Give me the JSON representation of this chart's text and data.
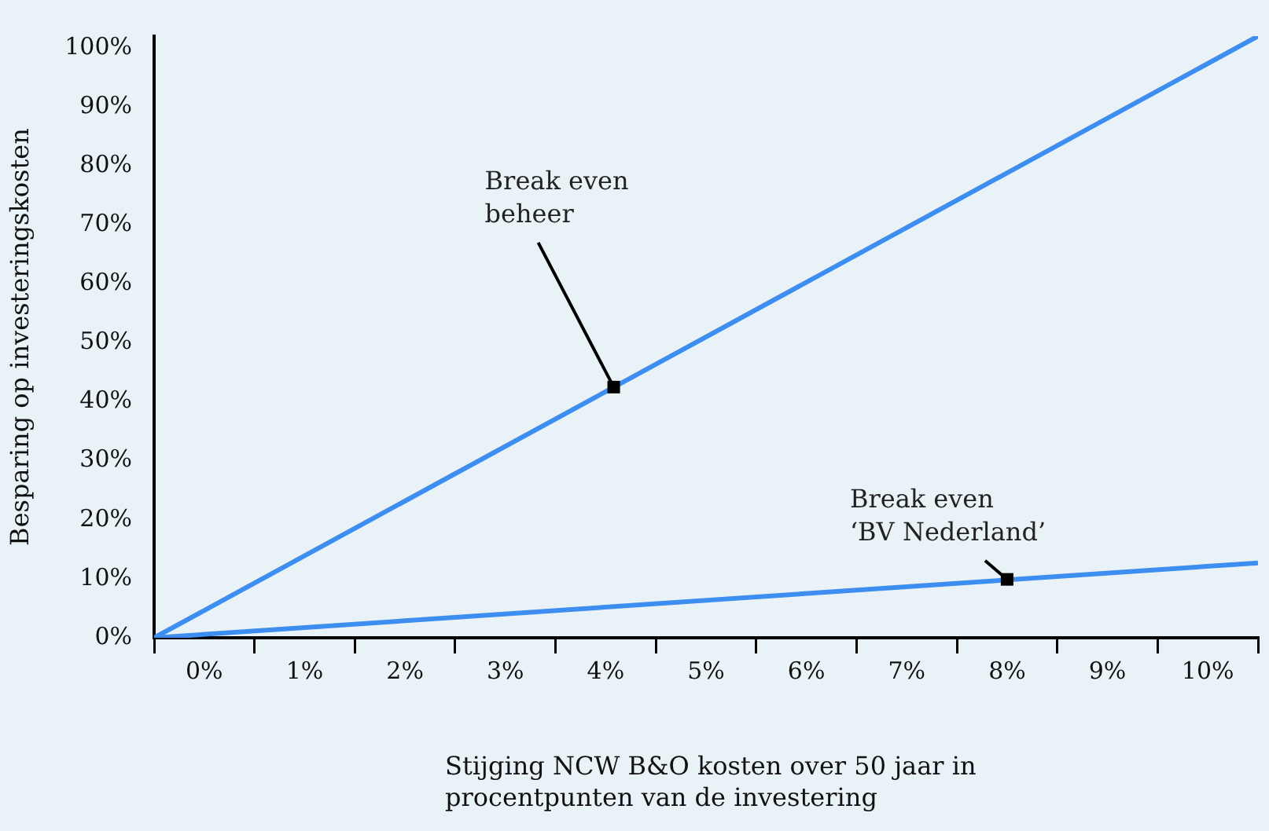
{
  "chart_data": {
    "type": "line",
    "xlabel": "Stijging NCW B&O kosten over 50 jaar in procentpunten van de investering",
    "ylabel": "Besparing op investeringskosten",
    "x": [
      -0.5,
      10.5
    ],
    "series": [
      {
        "color": "#3d8ef0",
        "values": [
          0,
          102
        ]
      },
      {
        "color": "#3d8ef0",
        "values": [
          0,
          12.7
        ]
      }
    ],
    "xlim": [
      -0.5,
      10.5
    ],
    "ylim": [
      0,
      102
    ],
    "xticks": [
      {
        "value": -0.5,
        "label": null
      },
      {
        "value": 0,
        "label": "0%"
      },
      {
        "value": 0.5,
        "label": null
      },
      {
        "value": 1,
        "label": "1%"
      },
      {
        "value": 1.5,
        "label": null
      },
      {
        "value": 2,
        "label": "2%"
      },
      {
        "value": 2.5,
        "label": null
      },
      {
        "value": 3,
        "label": "3%"
      },
      {
        "value": 3.5,
        "label": null
      },
      {
        "value": 4,
        "label": "4%"
      },
      {
        "value": 4.5,
        "label": null
      },
      {
        "value": 5,
        "label": "5%"
      },
      {
        "value": 5.5,
        "label": null
      },
      {
        "value": 6,
        "label": "6%"
      },
      {
        "value": 6.5,
        "label": null
      },
      {
        "value": 7,
        "label": "7%"
      },
      {
        "value": 7.5,
        "label": null
      },
      {
        "value": 8,
        "label": "8%"
      },
      {
        "value": 8.5,
        "label": null
      },
      {
        "value": 9,
        "label": "9%"
      },
      {
        "value": 9.5,
        "label": null
      },
      {
        "value": 10,
        "label": "10%"
      },
      {
        "value": 10.5,
        "label": null
      }
    ],
    "yticks": [
      {
        "value": 0,
        "label": "0%"
      },
      {
        "value": 10,
        "label": "10%"
      },
      {
        "value": 20,
        "label": "20%"
      },
      {
        "value": 30,
        "label": "30%"
      },
      {
        "value": 40,
        "label": "40%"
      },
      {
        "value": 50,
        "label": "50%"
      },
      {
        "value": 60,
        "label": "60%"
      },
      {
        "value": 70,
        "label": "70%"
      },
      {
        "value": 80,
        "label": "80%"
      },
      {
        "value": 90,
        "label": "90%"
      },
      {
        "value": 100,
        "label": "100%"
      }
    ],
    "grid": false,
    "legend": false,
    "marker": "none",
    "line_style": "solid",
    "annotations": [
      {
        "text": "Break even beheer",
        "x": 4.08,
        "y": 42.5
      },
      {
        "text": "Break even ‘BV Nederland’",
        "x": 8,
        "y": 9.9
      }
    ]
  }
}
